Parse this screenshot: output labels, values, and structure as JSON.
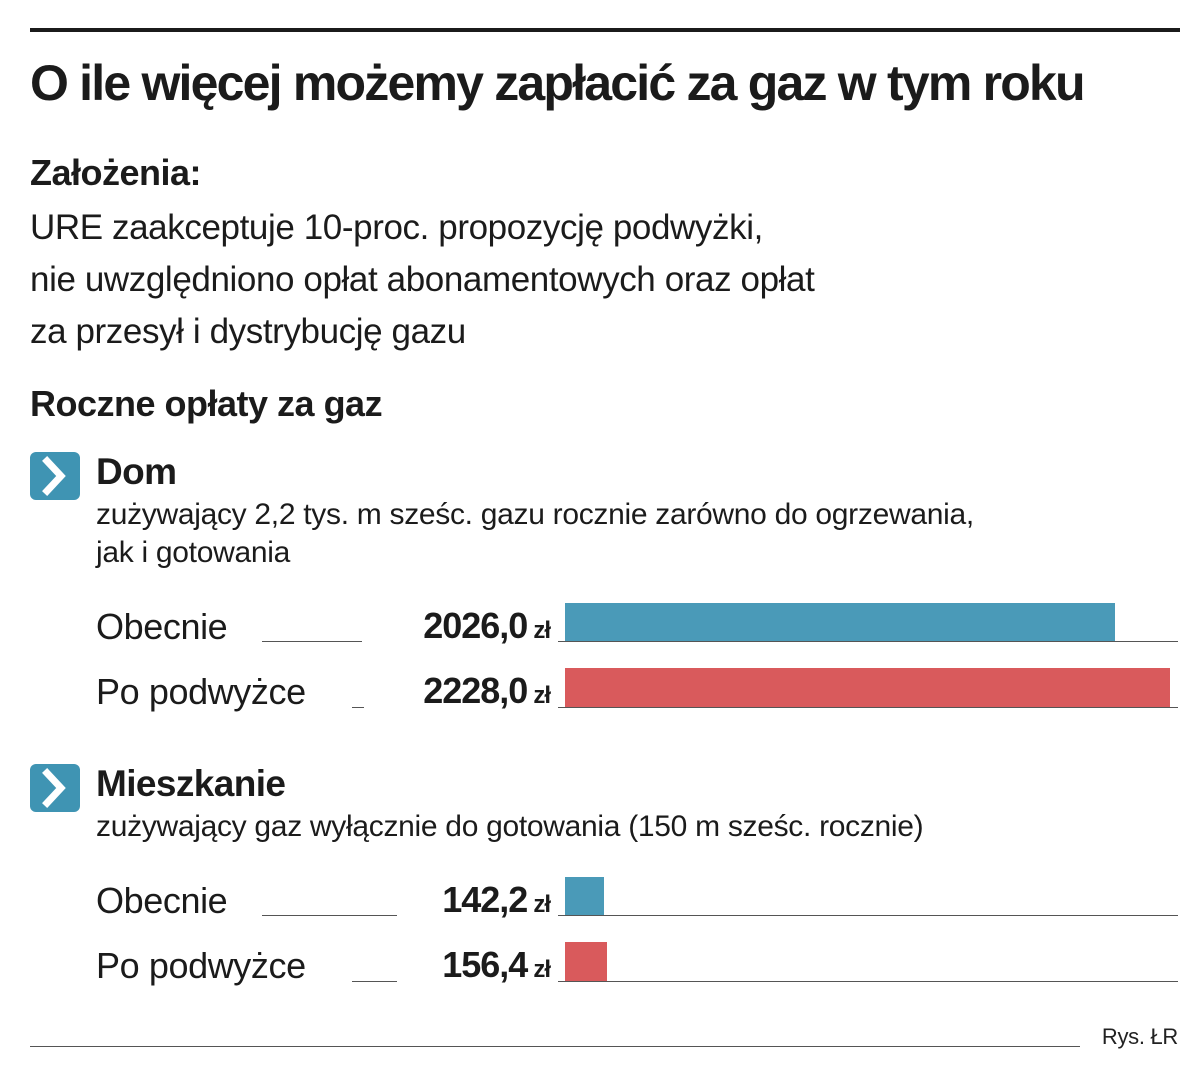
{
  "title": "O ile więcej możemy zapłacić za gaz w tym roku",
  "assumptions": {
    "label": "Założenia:",
    "lines": [
      "URE zaakceptuje 10-proc. propozycję podwyżki,",
      "nie uwzględniono opłat abonamentowych oraz opłat",
      "za przesył i dystrybucję gazu"
    ]
  },
  "section_title": "Roczne opłaty za gaz",
  "colors": {
    "current": "#4a9ab8",
    "after": "#d95a5c",
    "icon": "#3f94b3"
  },
  "chart_data": {
    "type": "bar",
    "orientation": "horizontal",
    "title": "Roczne opłaty za gaz",
    "unit": "zł",
    "series": [
      {
        "name": "Obecnie",
        "color": "#4a9ab8"
      },
      {
        "name": "Po podwyżce",
        "color": "#d95a5c"
      }
    ],
    "groups": [
      {
        "name": "Dom",
        "description": [
          "zużywający 2,2 tys. m sześc. gazu rocznie zarówno do ogrzewania,",
          "jak i gotowania"
        ],
        "rows": [
          {
            "label": "Obecnie",
            "value": 2026.0,
            "value_text": "2026,0",
            "series": 0
          },
          {
            "label": "Po podwyżce",
            "value": 2228.0,
            "value_text": "2228,0",
            "series": 1
          }
        ]
      },
      {
        "name": "Mieszkanie",
        "description": [
          "zużywający gaz wyłącznie do gotowania (150 m sześc. rocznie)"
        ],
        "rows": [
          {
            "label": "Obecnie",
            "value": 142.2,
            "value_text": "142,2",
            "series": 0
          },
          {
            "label": "Po podwyżce",
            "value": 156.4,
            "value_text": "156,4",
            "series": 1
          }
        ]
      }
    ],
    "xlim": [
      0,
      2228
    ]
  },
  "credit": "Rys. ŁR"
}
